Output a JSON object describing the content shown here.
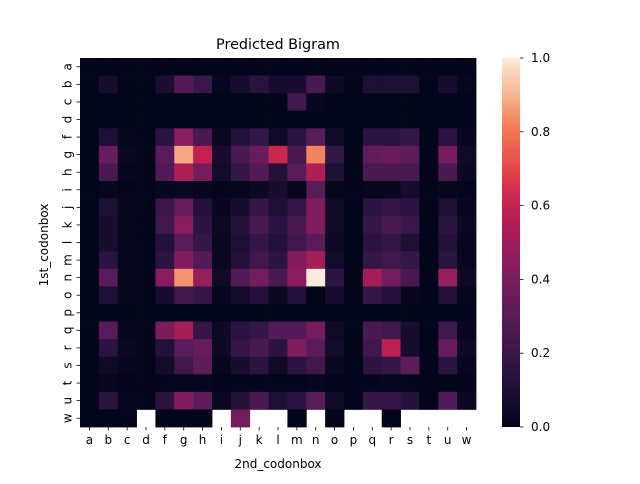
{
  "chart_data": {
    "type": "heatmap",
    "title": "Predicted Bigram",
    "xlabel": "2nd_codonbox",
    "ylabel": "1st_codonbox",
    "x_categories": [
      "a",
      "b",
      "c",
      "d",
      "f",
      "g",
      "h",
      "i",
      "j",
      "k",
      "l",
      "m",
      "n",
      "o",
      "p",
      "q",
      "r",
      "s",
      "t",
      "u",
      "w"
    ],
    "y_categories": [
      "a",
      "b",
      "c",
      "d",
      "f",
      "g",
      "h",
      "i",
      "j",
      "k",
      "l",
      "m",
      "n",
      "o",
      "p",
      "q",
      "r",
      "s",
      "t",
      "u",
      "w"
    ],
    "colorbar": {
      "min": 0.0,
      "max": 1.0,
      "ticks": [
        "0.0",
        "0.2",
        "0.4",
        "0.6",
        "0.8",
        "1.0"
      ],
      "colormap": "rocket"
    },
    "values": [
      [
        0.0,
        0.0,
        0.0,
        0.0,
        0.0,
        0.0,
        0.0,
        0.0,
        0.0,
        0.0,
        0.0,
        0.0,
        0.0,
        0.0,
        0.0,
        0.0,
        0.0,
        0.0,
        0.0,
        0.0,
        0.0
      ],
      [
        0.0,
        0.08,
        0.0,
        0.0,
        0.09,
        0.28,
        0.2,
        0.02,
        0.08,
        0.14,
        0.07,
        0.08,
        0.25,
        0.04,
        0.0,
        0.1,
        0.1,
        0.1,
        0.0,
        0.07,
        0.01
      ],
      [
        0.0,
        0.0,
        0.0,
        0.0,
        0.0,
        0.0,
        0.0,
        0.0,
        0.0,
        0.0,
        0.0,
        0.22,
        0.02,
        0.0,
        0.0,
        0.0,
        0.0,
        0.0,
        0.0,
        0.0,
        0.0
      ],
      [
        0.0,
        0.0,
        0.0,
        0.0,
        0.0,
        0.0,
        0.0,
        0.0,
        0.0,
        0.0,
        0.0,
        0.0,
        0.0,
        0.0,
        0.0,
        0.0,
        0.0,
        0.0,
        0.0,
        0.0,
        0.0
      ],
      [
        0.0,
        0.1,
        0.01,
        0.0,
        0.15,
        0.45,
        0.25,
        0.03,
        0.12,
        0.18,
        0.05,
        0.15,
        0.3,
        0.05,
        0.0,
        0.15,
        0.15,
        0.18,
        0.0,
        0.15,
        0.02
      ],
      [
        0.0,
        0.35,
        0.03,
        0.0,
        0.3,
        0.88,
        0.6,
        0.08,
        0.25,
        0.35,
        0.62,
        0.25,
        0.82,
        0.18,
        0.0,
        0.33,
        0.35,
        0.32,
        0.0,
        0.38,
        0.05
      ],
      [
        0.0,
        0.25,
        0.02,
        0.0,
        0.28,
        0.55,
        0.38,
        0.06,
        0.18,
        0.28,
        0.12,
        0.3,
        0.55,
        0.1,
        0.0,
        0.25,
        0.25,
        0.25,
        0.0,
        0.25,
        0.03
      ],
      [
        0.0,
        0.02,
        0.0,
        0.0,
        0.02,
        0.03,
        0.02,
        0.0,
        0.01,
        0.03,
        0.08,
        0.01,
        0.3,
        0.01,
        0.0,
        0.01,
        0.02,
        0.07,
        0.0,
        0.02,
        0.0
      ],
      [
        0.0,
        0.1,
        0.01,
        0.0,
        0.2,
        0.35,
        0.12,
        0.02,
        0.08,
        0.18,
        0.1,
        0.18,
        0.42,
        0.05,
        0.0,
        0.15,
        0.18,
        0.15,
        0.0,
        0.1,
        0.02
      ],
      [
        0.0,
        0.08,
        0.01,
        0.0,
        0.22,
        0.45,
        0.15,
        0.04,
        0.12,
        0.25,
        0.15,
        0.25,
        0.42,
        0.05,
        0.0,
        0.18,
        0.25,
        0.2,
        0.0,
        0.15,
        0.03
      ],
      [
        0.0,
        0.08,
        0.01,
        0.0,
        0.12,
        0.3,
        0.18,
        0.03,
        0.1,
        0.18,
        0.12,
        0.22,
        0.3,
        0.04,
        0.0,
        0.15,
        0.18,
        0.1,
        0.0,
        0.12,
        0.02
      ],
      [
        0.0,
        0.15,
        0.02,
        0.0,
        0.15,
        0.42,
        0.28,
        0.03,
        0.12,
        0.22,
        0.15,
        0.42,
        0.52,
        0.06,
        0.0,
        0.18,
        0.22,
        0.18,
        0.0,
        0.15,
        0.02
      ],
      [
        0.0,
        0.3,
        0.02,
        0.0,
        0.45,
        0.85,
        0.48,
        0.05,
        0.28,
        0.38,
        0.25,
        0.45,
        1.0,
        0.15,
        0.0,
        0.52,
        0.38,
        0.25,
        0.0,
        0.48,
        0.04
      ],
      [
        0.0,
        0.1,
        0.01,
        0.0,
        0.08,
        0.22,
        0.18,
        0.02,
        0.06,
        0.12,
        0.03,
        0.12,
        0.0,
        0.08,
        0.0,
        0.18,
        0.12,
        0.02,
        0.0,
        0.12,
        0.01
      ],
      [
        0.0,
        0.0,
        0.0,
        0.0,
        0.0,
        0.0,
        0.0,
        0.0,
        0.0,
        0.0,
        0.0,
        0.0,
        0.0,
        0.0,
        0.0,
        0.0,
        0.0,
        0.0,
        0.0,
        0.0,
        0.0
      ],
      [
        0.0,
        0.3,
        0.02,
        0.0,
        0.4,
        0.52,
        0.18,
        0.04,
        0.15,
        0.18,
        0.28,
        0.28,
        0.38,
        0.05,
        0.0,
        0.25,
        0.22,
        0.08,
        0.0,
        0.22,
        0.02
      ],
      [
        0.0,
        0.15,
        0.03,
        0.0,
        0.12,
        0.3,
        0.35,
        0.04,
        0.18,
        0.25,
        0.15,
        0.42,
        0.3,
        0.06,
        0.0,
        0.22,
        0.58,
        0.08,
        0.0,
        0.35,
        0.04
      ],
      [
        0.0,
        0.05,
        0.02,
        0.0,
        0.06,
        0.22,
        0.32,
        0.02,
        0.08,
        0.15,
        0.05,
        0.15,
        0.22,
        0.03,
        0.0,
        0.15,
        0.18,
        0.32,
        0.0,
        0.15,
        0.02
      ],
      [
        0.0,
        0.01,
        0.0,
        0.0,
        0.0,
        0.01,
        0.01,
        0.0,
        0.0,
        0.0,
        0.0,
        0.0,
        0.01,
        0.0,
        0.0,
        0.0,
        0.01,
        0.0,
        0.0,
        0.0,
        0.0
      ],
      [
        0.0,
        0.15,
        0.02,
        0.0,
        0.15,
        0.42,
        0.32,
        0.03,
        0.12,
        0.25,
        0.1,
        0.15,
        0.3,
        0.05,
        0.0,
        0.18,
        0.18,
        0.12,
        0.0,
        0.28,
        0.03
      ],
      [
        0.0,
        0.0,
        0.0,
        null,
        0.0,
        0.0,
        0.0,
        null,
        0.38,
        null,
        null,
        0.0,
        null,
        0.0,
        null,
        null,
        0.0,
        null,
        null,
        null,
        null
      ]
    ]
  }
}
